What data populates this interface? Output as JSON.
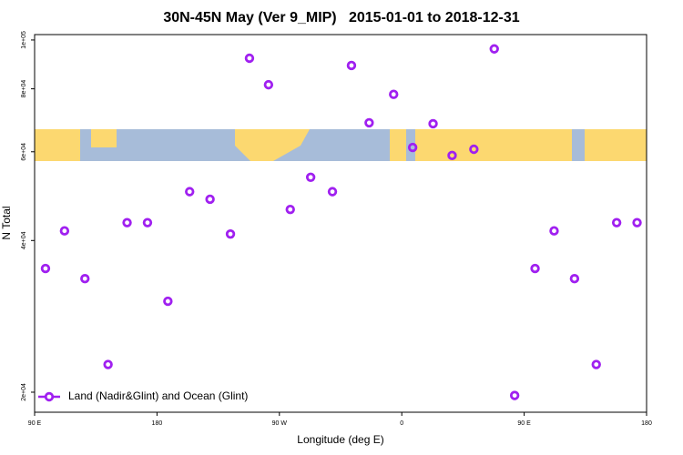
{
  "chart_data": {
    "type": "scatter",
    "title": "30N-45N May (Ver 9_MIP)   2015-01-01 to 2018-12-31",
    "x_label": "Longitude (deg E)",
    "y_label": "N Total",
    "log_y": true,
    "legend_position": "lower left",
    "xlim": [
      90,
      540
    ],
    "ylim": [
      18250,
      102500
    ],
    "xticks": [
      {
        "value": 90,
        "label": "90 E"
      },
      {
        "value": 180,
        "label": "180"
      },
      {
        "value": 270,
        "label": "90 W"
      },
      {
        "value": 360,
        "label": "0"
      },
      {
        "value": 450,
        "label": "90 E"
      },
      {
        "value": 540,
        "label": "180"
      }
    ],
    "yticks": [
      {
        "value": 20000,
        "label": "2e+04"
      },
      {
        "value": 40000,
        "label": "4e+04"
      },
      {
        "value": 60000,
        "label": "6e+04"
      },
      {
        "value": 80000,
        "label": "8e+04"
      },
      {
        "value": 100000,
        "label": "1e+05"
      }
    ],
    "series": [
      {
        "name": "Land (Nadir&Glint) and Ocean (Glint)",
        "color": "#a020f0",
        "x": [
          98,
          112,
          127,
          144,
          158,
          173,
          188,
          204,
          219,
          234,
          248,
          262,
          278,
          293,
          309,
          323,
          336,
          354,
          368,
          383,
          397,
          413,
          428,
          443,
          458,
          472,
          487,
          503,
          518,
          533
        ],
        "values": [
          35200,
          41800,
          33600,
          22700,
          43400,
          43400,
          30300,
          50000,
          48300,
          41200,
          92000,
          81500,
          46100,
          53400,
          50000,
          89000,
          68500,
          78000,
          61200,
          68200,
          59000,
          60700,
          96000,
          19700,
          35200,
          41800,
          33600,
          22700,
          43400,
          43400
        ]
      }
    ]
  }
}
